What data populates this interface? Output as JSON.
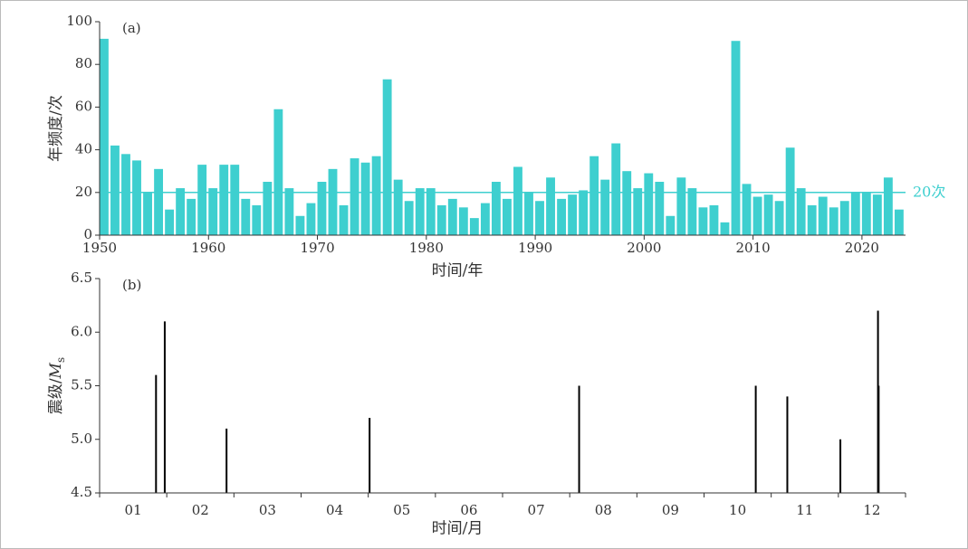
{
  "chart_data": [
    {
      "type": "bar",
      "annotation": "(a)",
      "y_label": "年频度/次",
      "x_label": "时间/年",
      "color": "#3ecfcf",
      "x": [
        1950,
        1951,
        1952,
        1953,
        1954,
        1955,
        1956,
        1957,
        1958,
        1959,
        1960,
        1961,
        1962,
        1963,
        1964,
        1965,
        1966,
        1967,
        1968,
        1969,
        1970,
        1971,
        1972,
        1973,
        1974,
        1975,
        1976,
        1977,
        1978,
        1979,
        1980,
        1981,
        1982,
        1983,
        1984,
        1985,
        1986,
        1987,
        1988,
        1989,
        1990,
        1991,
        1992,
        1993,
        1994,
        1995,
        1996,
        1997,
        1998,
        1999,
        2000,
        2001,
        2002,
        2003,
        2004,
        2005,
        2006,
        2007,
        2008,
        2009,
        2010,
        2011,
        2012,
        2013,
        2014,
        2015,
        2016,
        2017,
        2018,
        2019,
        2020,
        2021,
        2022,
        2023
      ],
      "values": [
        92,
        42,
        38,
        35,
        20,
        31,
        12,
        22,
        17,
        33,
        22,
        33,
        33,
        17,
        14,
        25,
        59,
        22,
        9,
        15,
        25,
        31,
        14,
        36,
        34,
        37,
        73,
        26,
        16,
        22,
        22,
        14,
        17,
        13,
        8,
        15,
        25,
        17,
        32,
        20,
        16,
        27,
        17,
        19,
        21,
        37,
        26,
        43,
        30,
        22,
        29,
        25,
        9,
        27,
        22,
        13,
        14,
        6,
        91,
        24,
        18,
        19,
        16,
        41,
        22,
        14,
        18,
        13,
        16,
        20,
        20,
        19,
        27,
        12
      ],
      "xlim": [
        1950,
        2024
      ],
      "xticks": [
        1950,
        1960,
        1970,
        1980,
        1990,
        2000,
        2010,
        2020
      ],
      "ylim": [
        0,
        100
      ],
      "yticks": [
        0,
        20,
        40,
        60,
        80,
        100
      ],
      "reference_line": {
        "value": 20,
        "label": "20次"
      }
    },
    {
      "type": "stem",
      "annotation": "(b)",
      "y_label": "震级/",
      "y_label_symbol": "M",
      "y_label_subscript": "s",
      "x_label": "时间/月",
      "color": "#000000",
      "categories": [
        "01",
        "02",
        "03",
        "04",
        "05",
        "06",
        "07",
        "08",
        "09",
        "10",
        "11",
        "12"
      ],
      "x": [
        0.84,
        0.97,
        1.89,
        4.02,
        7.14,
        9.77,
        10.24,
        11.03,
        11.59,
        11.6
      ],
      "values": [
        5.6,
        6.1,
        5.1,
        5.2,
        5.5,
        5.5,
        5.4,
        5.0,
        6.2,
        5.5
      ],
      "xlim": [
        0,
        12
      ],
      "xticks": [
        0,
        1,
        2,
        3,
        4,
        5,
        6,
        7,
        8,
        9,
        10,
        11,
        12
      ],
      "ylim": [
        4.5,
        6.5
      ],
      "yticks": [
        4.5,
        {
          "value": 5,
          "label": "5.0"
        },
        5.5,
        {
          "value": 6,
          "label": "6.0"
        },
        6.5
      ]
    }
  ]
}
